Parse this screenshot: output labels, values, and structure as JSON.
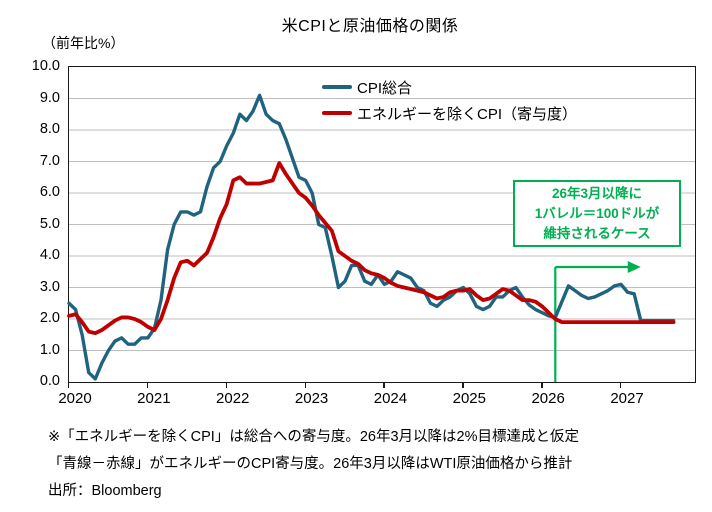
{
  "title": "米CPIと原油価格の関係",
  "y_axis_unit": "（前年比%）",
  "legend": {
    "items": [
      {
        "label": "CPI総合",
        "color": "#20637F"
      },
      {
        "label": "エネルギーを除くCPI（寄与度）",
        "color": "#C00000"
      }
    ]
  },
  "annotation_box": {
    "lines": [
      "26年3月以降に",
      "1バレル＝100ドルが",
      "維持されるケース"
    ],
    "color": "#00B050"
  },
  "footer": {
    "lines": [
      "※「エネルギーを除くCPI」は総合への寄与度。26年3月以降は2%目標達成と仮定",
      "「青線－赤線」がエネルギーのCPI寄与度。26年3月以降はWTI原油価格から推計",
      "出所：Bloomberg"
    ]
  },
  "chart_data": {
    "type": "line",
    "x_interval": "monthly",
    "x_start": "2020-01",
    "x_end": "2027-09",
    "x_tick_labels": [
      "2020",
      "2021",
      "2022",
      "2023",
      "2024",
      "2025",
      "2026",
      "2027"
    ],
    "ylim": [
      0.0,
      10.0
    ],
    "y_tick_step": 1.0,
    "grid": true,
    "grid_color": "#BFBFBF",
    "series": [
      {
        "name": "CPI総合",
        "color": "#20637F",
        "width": 3.4,
        "values": [
          2.5,
          2.3,
          1.5,
          0.3,
          0.1,
          0.6,
          1.0,
          1.3,
          1.4,
          1.2,
          1.2,
          1.4,
          1.4,
          1.7,
          2.6,
          4.2,
          5.0,
          5.4,
          5.4,
          5.3,
          5.4,
          6.2,
          6.8,
          7.0,
          7.5,
          7.9,
          8.5,
          8.3,
          8.6,
          9.1,
          8.5,
          8.3,
          8.2,
          7.7,
          7.1,
          6.5,
          6.4,
          6.0,
          5.0,
          4.9,
          4.0,
          3.0,
          3.2,
          3.7,
          3.7,
          3.2,
          3.1,
          3.4,
          3.1,
          3.2,
          3.5,
          3.4,
          3.3,
          3.0,
          2.9,
          2.5,
          2.4,
          2.6,
          2.7,
          2.9,
          3.0,
          2.8,
          2.4,
          2.3,
          2.4,
          2.7,
          2.7,
          2.9,
          3.0,
          2.7,
          2.45,
          2.3,
          2.2,
          2.1,
          2.05,
          2.55,
          3.05,
          2.9,
          2.75,
          2.65,
          2.7,
          2.8,
          2.9,
          3.05,
          3.1,
          2.85,
          2.8,
          1.95,
          1.95,
          1.95,
          1.95,
          1.95,
          1.95
        ]
      },
      {
        "name": "エネルギーを除くCPI（寄与度）",
        "color": "#C00000",
        "width": 3.8,
        "values": [
          2.1,
          2.15,
          1.9,
          1.6,
          1.55,
          1.65,
          1.8,
          1.95,
          2.05,
          2.05,
          2.0,
          1.9,
          1.75,
          1.65,
          2.0,
          2.6,
          3.3,
          3.8,
          3.85,
          3.7,
          3.9,
          4.1,
          4.6,
          5.2,
          5.65,
          6.4,
          6.5,
          6.3,
          6.3,
          6.3,
          6.35,
          6.4,
          6.95,
          6.6,
          6.3,
          6.0,
          5.85,
          5.6,
          5.3,
          5.05,
          4.8,
          4.15,
          4.0,
          3.85,
          3.75,
          3.55,
          3.45,
          3.4,
          3.3,
          3.15,
          3.05,
          3.0,
          2.95,
          2.9,
          2.85,
          2.75,
          2.65,
          2.7,
          2.85,
          2.9,
          2.9,
          2.95,
          2.75,
          2.6,
          2.65,
          2.8,
          2.95,
          2.9,
          2.75,
          2.6,
          2.6,
          2.55,
          2.4,
          2.2,
          2.0,
          1.9,
          1.9,
          1.9,
          1.9,
          1.9,
          1.9,
          1.9,
          1.9,
          1.9,
          1.9,
          1.9,
          1.9,
          1.9,
          1.9,
          1.9,
          1.9,
          1.9,
          1.9
        ]
      }
    ],
    "annotation_line": {
      "color": "#00B050",
      "month_index": 74,
      "top_value": 3.65,
      "arrow_end_month_index": 87.0,
      "meaning": "26年3月以降"
    }
  }
}
